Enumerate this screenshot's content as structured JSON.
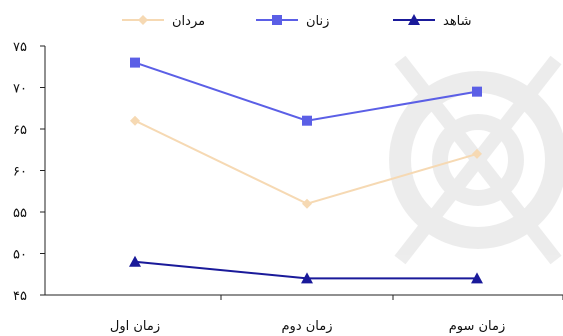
{
  "chart_data": {
    "type": "line",
    "categories": [
      "زمان اول",
      "زمان دوم",
      "زمان سوم"
    ],
    "ylim": [
      45,
      75
    ],
    "yticks": [
      {
        "value": 45,
        "label": "۴۵"
      },
      {
        "value": 50,
        "label": "۵۰"
      },
      {
        "value": 55,
        "label": "۵۵"
      },
      {
        "value": 60,
        "label": "۶۰"
      },
      {
        "value": 65,
        "label": "۶۵"
      },
      {
        "value": 70,
        "label": "۷۰"
      },
      {
        "value": 75,
        "label": "۷۵"
      }
    ],
    "grid": false,
    "legend_position": "top",
    "series": [
      {
        "name": "مردان",
        "values": [
          66,
          56,
          62
        ],
        "color": "#f6d9b3",
        "marker": "diamond"
      },
      {
        "name": "زنان",
        "values": [
          73,
          66,
          69.5
        ],
        "color": "#5b5fe6",
        "marker": "square"
      },
      {
        "name": "شاهد",
        "values": [
          49,
          47,
          47
        ],
        "color": "#1a1a9a",
        "marker": "triangle"
      }
    ],
    "legend_order": [
      2,
      1,
      0
    ]
  }
}
